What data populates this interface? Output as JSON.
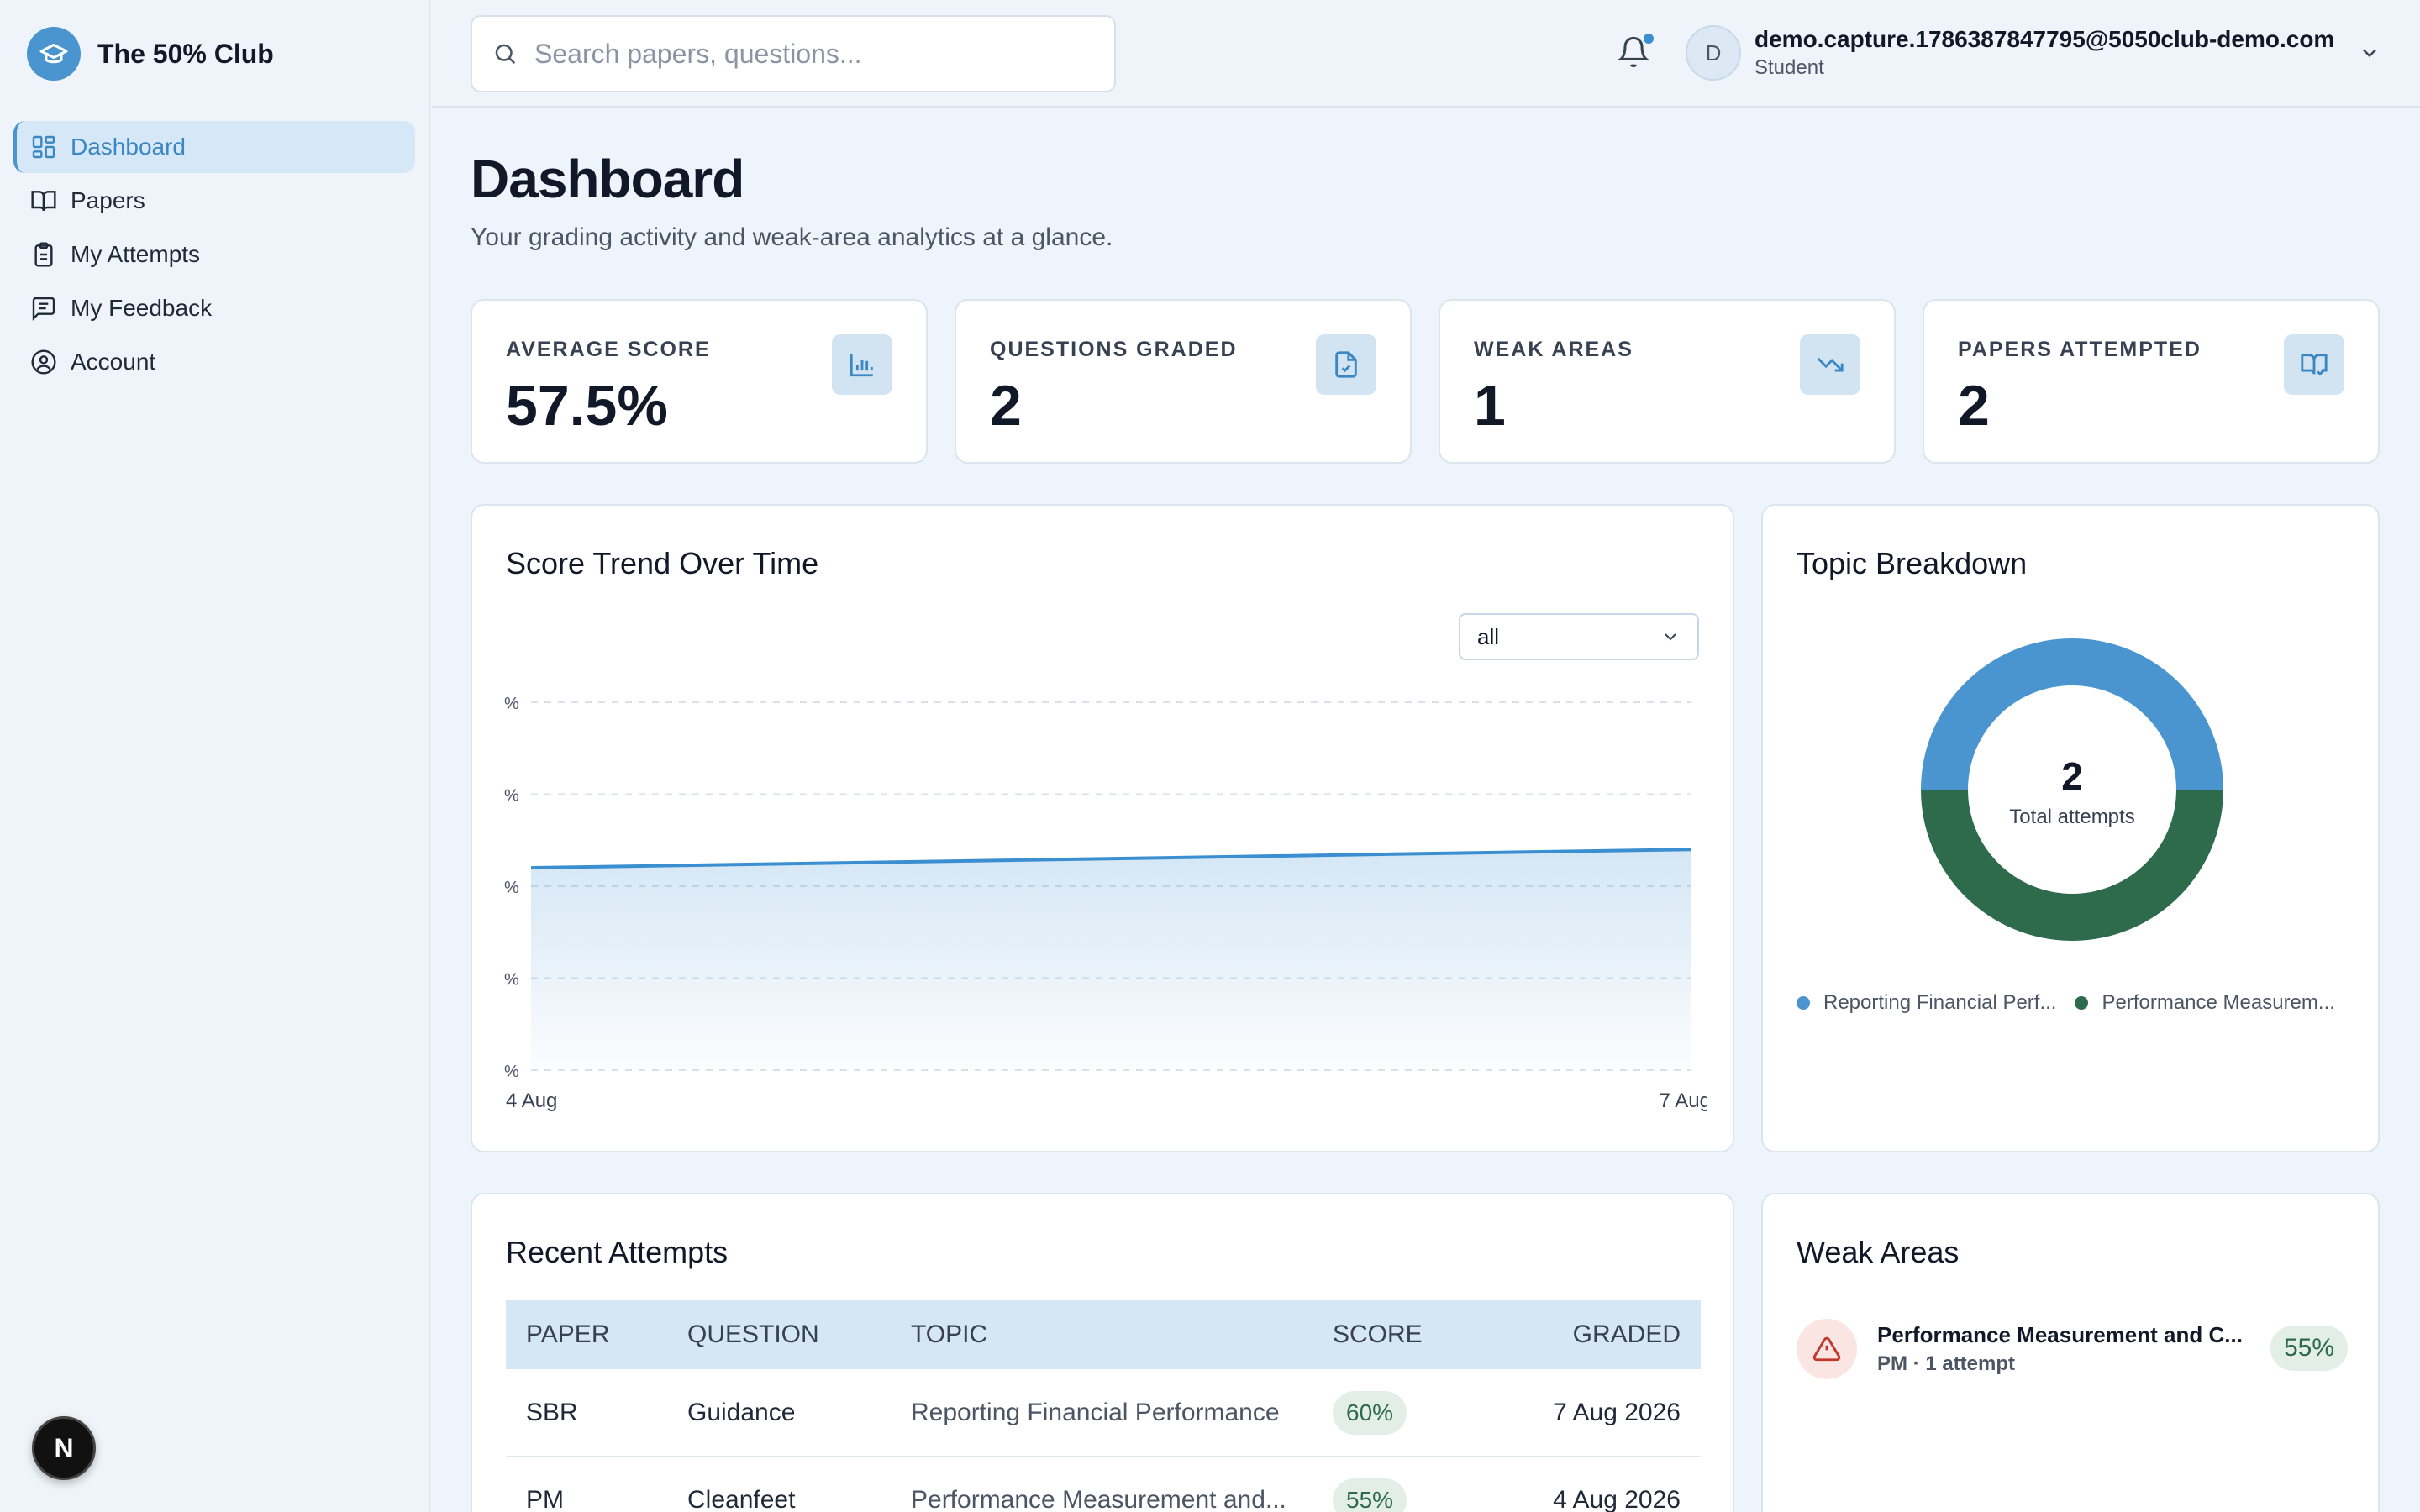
{
  "brand": {
    "name": "The 50% Club"
  },
  "sidebar": {
    "items": [
      {
        "label": "Dashboard",
        "icon": "dashboard-icon",
        "active": true
      },
      {
        "label": "Papers",
        "icon": "book-icon"
      },
      {
        "label": "My Attempts",
        "icon": "clipboard-icon"
      },
      {
        "label": "My Feedback",
        "icon": "message-icon"
      },
      {
        "label": "Account",
        "icon": "user-circle-icon"
      }
    ],
    "badge": "N"
  },
  "topbar": {
    "search_placeholder": "Search papers, questions...",
    "user": {
      "initial": "D",
      "email": "demo.capture.1786387847795@5050club-demo.com",
      "role": "Student"
    }
  },
  "page": {
    "title": "Dashboard",
    "subtitle": "Your grading activity and weak-area analytics at a glance."
  },
  "stats": [
    {
      "label": "AVERAGE SCORE",
      "value": "57.5%",
      "icon": "bar-chart-icon"
    },
    {
      "label": "QUESTIONS GRADED",
      "value": "2",
      "icon": "file-check-icon"
    },
    {
      "label": "WEAK AREAS",
      "value": "1",
      "icon": "trending-down-icon"
    },
    {
      "label": "PAPERS ATTEMPTED",
      "value": "2",
      "icon": "book-check-icon"
    }
  ],
  "trend": {
    "title": "Score Trend Over Time",
    "filter": "all"
  },
  "chart_data": [
    {
      "type": "area",
      "title": "Score Trend Over Time",
      "x": [
        "4 Aug",
        "7 Aug"
      ],
      "series": [
        {
          "values": [
            55,
            60
          ]
        }
      ],
      "ylim": [
        0,
        100
      ],
      "yticks": [
        "%",
        "%",
        "%",
        "%",
        "%"
      ],
      "grid": true,
      "color": "#3b8fd0"
    },
    {
      "type": "pie",
      "title": "Topic Breakdown",
      "categories": [
        "Reporting Financial Perf...",
        "Performance Measurem..."
      ],
      "values": [
        1,
        1
      ],
      "colors": [
        "#4a94cf",
        "#2e6b4c"
      ],
      "center_value": "2",
      "center_label": "Total attempts",
      "legend": "bottom"
    }
  ],
  "recent": {
    "title": "Recent Attempts",
    "columns": [
      "PAPER",
      "QUESTION",
      "TOPIC",
      "SCORE",
      "GRADED"
    ],
    "rows": [
      [
        "SBR",
        "Guidance",
        "Reporting Financial Performance",
        "60%",
        "7 Aug 2026"
      ],
      [
        "PM",
        "Cleanfeet",
        "Performance Measurement and...",
        "55%",
        "4 Aug 2026"
      ]
    ]
  },
  "weak": {
    "title": "Weak Areas",
    "items": [
      {
        "title": "Performance Measurement and C...",
        "meta": "PM · 1 attempt",
        "score": "55%"
      }
    ]
  }
}
